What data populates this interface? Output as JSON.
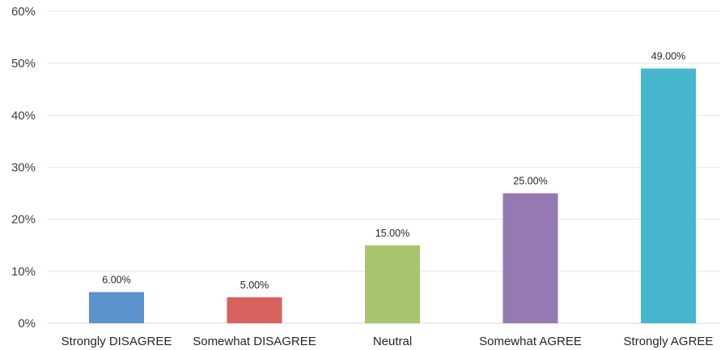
{
  "chart_data": {
    "type": "bar",
    "categories": [
      "Strongly DISAGREE",
      "Somewhat DISAGREE",
      "Neutral",
      "Somewhat AGREE",
      "Strongly AGREE"
    ],
    "values": [
      6,
      5,
      15,
      25,
      49
    ],
    "data_labels": [
      "6.00%",
      "5.00%",
      "15.00%",
      "25.00%",
      "49.00%"
    ],
    "colors": [
      "#5b93cc",
      "#d9625e",
      "#a7c56e",
      "#9579b2",
      "#45b6cd"
    ],
    "ylim": [
      0,
      60
    ],
    "yticks": [
      0,
      10,
      20,
      30,
      40,
      50,
      60
    ],
    "ytick_labels": [
      "0%",
      "10%",
      "20%",
      "30%",
      "40%",
      "50%",
      "60%"
    ],
    "title": "",
    "xlabel": "",
    "ylabel": "",
    "grid": true,
    "legend": "none"
  }
}
